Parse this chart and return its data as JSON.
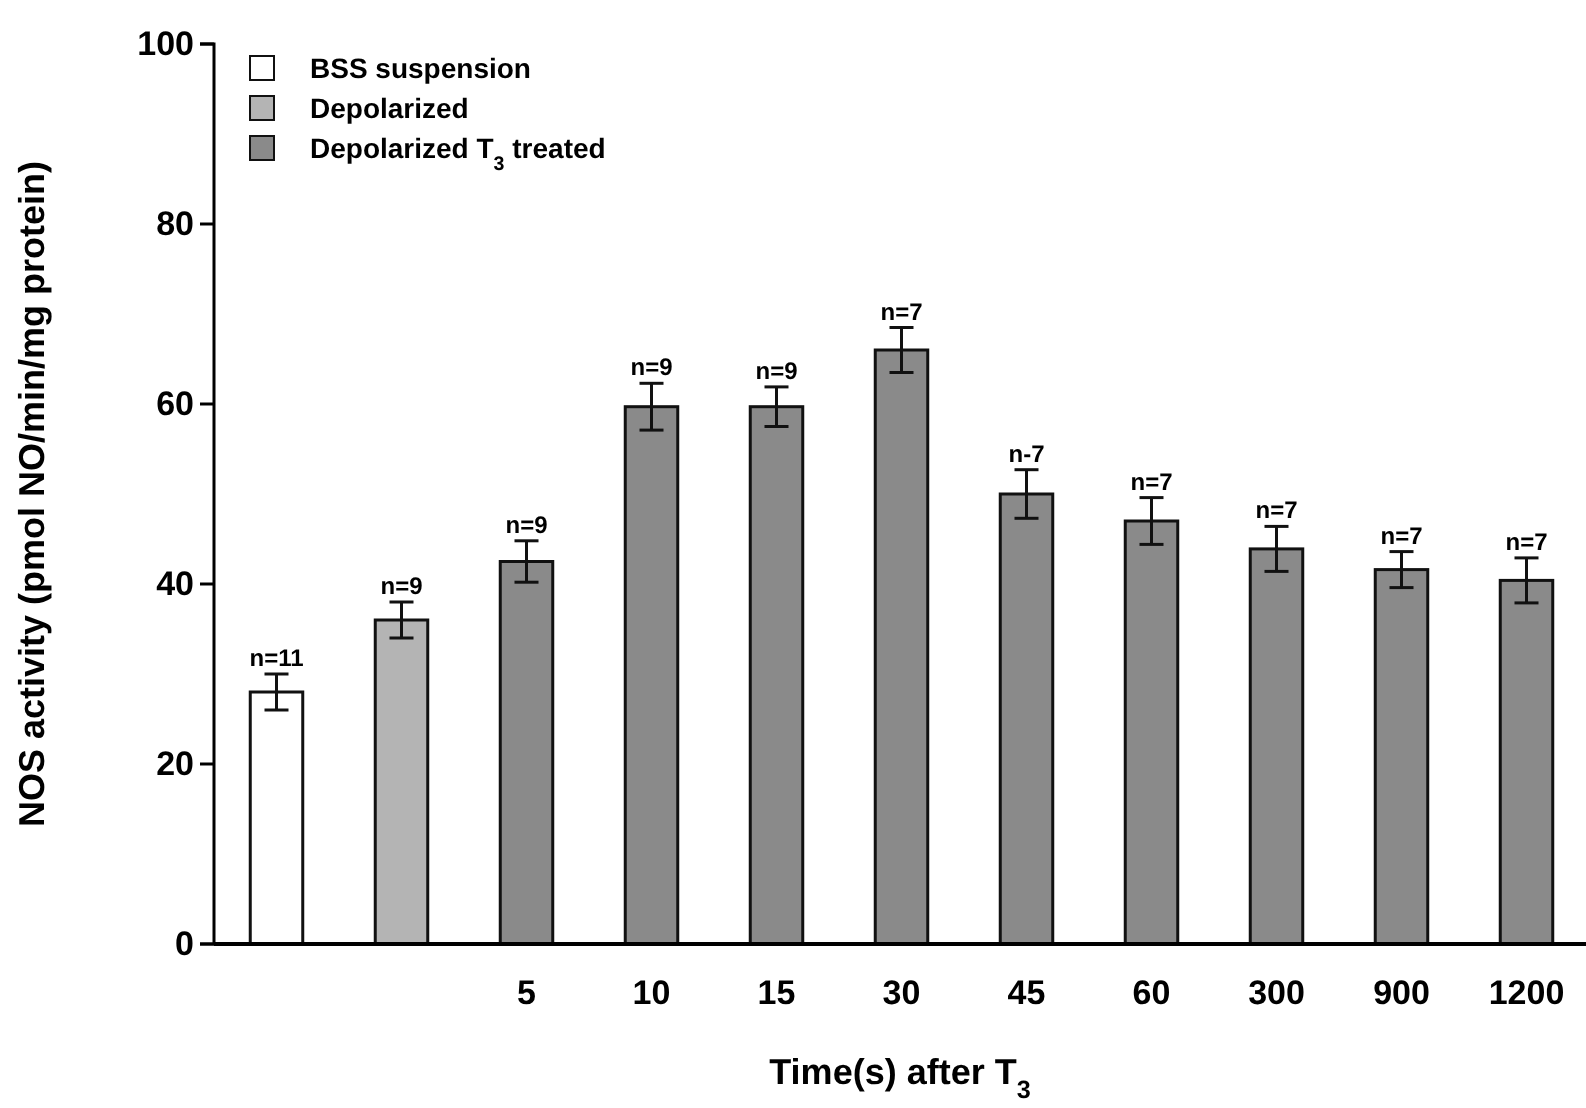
{
  "chart_data": {
    "type": "bar",
    "categories": [
      null,
      null,
      "5",
      "10",
      "15",
      "30",
      "45",
      "60",
      "300",
      "900",
      "1200"
    ],
    "xlabel": "Time(s) after T$_{3}$",
    "ylabel": "NOS activity (pmol NO/min/mg protein)",
    "ylim": [
      0,
      100
    ],
    "yticks": [
      0,
      20,
      40,
      60,
      80,
      100
    ],
    "grid": false,
    "legend": "top left",
    "series": [
      {
        "name": "BSS suspension",
        "color": "#ffffff",
        "values": [
          28,
          null,
          null,
          null,
          null,
          null,
          null,
          null,
          null,
          null,
          null
        ],
        "errors": [
          2,
          null,
          null,
          null,
          null,
          null,
          null,
          null,
          null,
          null,
          null
        ]
      },
      {
        "name": "Depolarized",
        "color": "#b4b4b4",
        "values": [
          null,
          36,
          null,
          null,
          null,
          null,
          null,
          null,
          null,
          null,
          null
        ],
        "errors": [
          null,
          2,
          null,
          null,
          null,
          null,
          null,
          null,
          null,
          null,
          null
        ]
      },
      {
        "name": "Depolarized T$_{3}$ treated",
        "color": "#8a8a8a",
        "values": [
          null,
          null,
          42.5,
          59.7,
          59.7,
          66,
          50,
          47,
          43.9,
          41.6,
          40.4
        ],
        "errors": [
          null,
          null,
          2.3,
          2.6,
          2.2,
          2.5,
          2.7,
          2.6,
          2.5,
          2,
          2.5
        ]
      }
    ],
    "annotations": [
      {
        "text": "n=11",
        "y": 30
      },
      {
        "text": "n=9",
        "y": 38
      },
      {
        "text": "n=9",
        "x": "5",
        "y": 44.8
      },
      {
        "text": "n=9",
        "x": "10",
        "y": 62.3
      },
      {
        "text": "n=9",
        "x": "15",
        "y": 61.9
      },
      {
        "text": "n=7",
        "x": "30",
        "y": 68.5
      },
      {
        "text": "n-7",
        "x": "45",
        "y": 52.7
      },
      {
        "text": "n=7",
        "x": "60",
        "y": 49.6
      },
      {
        "text": "n=7",
        "x": "300",
        "y": 46.4
      },
      {
        "text": "n=7",
        "x": "900",
        "y": 43.6
      },
      {
        "text": "n=7",
        "x": "1200",
        "y": 42.9
      }
    ]
  }
}
